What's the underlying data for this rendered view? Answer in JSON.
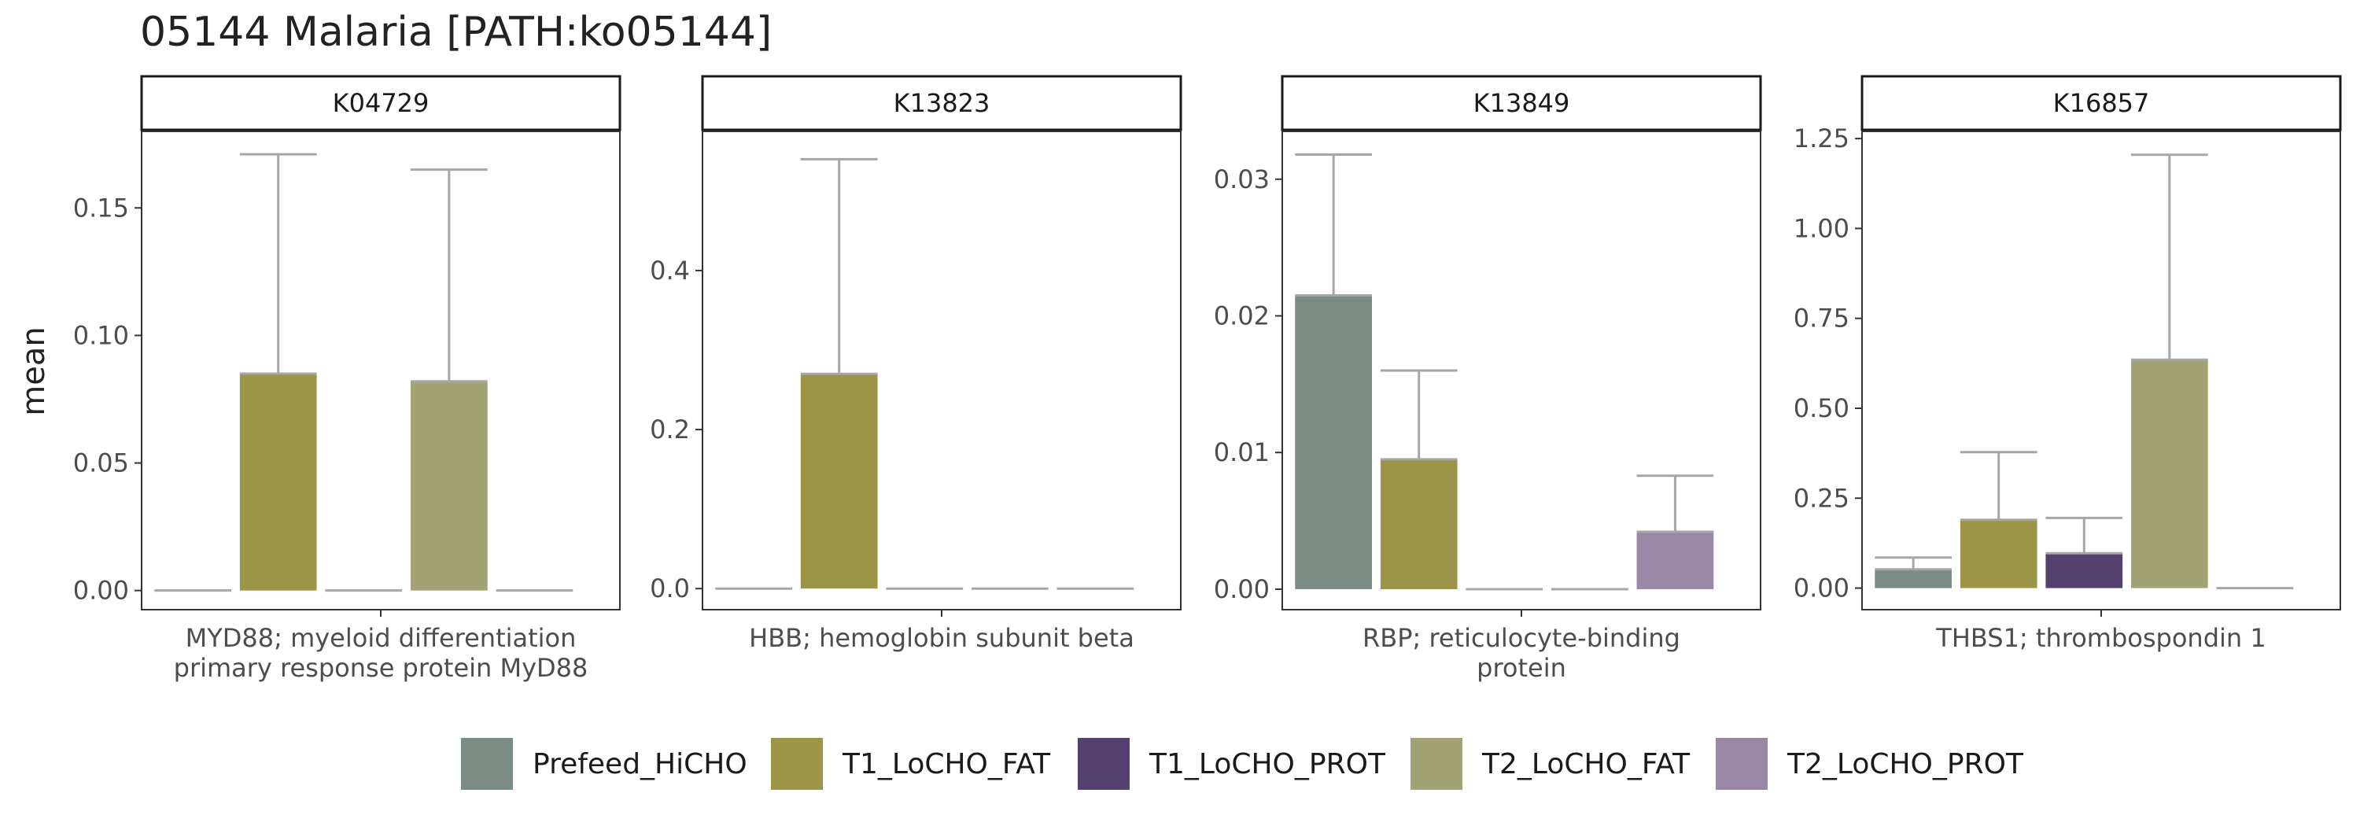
{
  "title": "05144 Malaria [PATH:ko05144]",
  "ylabel": "mean",
  "groups": [
    "Prefeed_HiCHO",
    "T1_LoCHO_FAT",
    "T1_LoCHO_PROT",
    "T2_LoCHO_FAT",
    "T2_LoCHO_PROT"
  ],
  "colors": {
    "Prefeed_HiCHO": "#7a8c84",
    "T1_LoCHO_FAT": "#9c9447",
    "T1_LoCHO_PROT": "#54416f",
    "T2_LoCHO_FAT": "#a2a374",
    "T2_LoCHO_PROT": "#9a87a6",
    "errorbar": "#a6a6a6"
  },
  "chart_data": [
    {
      "type": "bar",
      "panel": "K04729",
      "category_lines": [
        "MYD88; myeloid differentiation",
        "primary response protein MyD88"
      ],
      "categories": [
        "Prefeed_HiCHO",
        "T1_LoCHO_FAT",
        "T1_LoCHO_PROT",
        "T2_LoCHO_FAT",
        "T2_LoCHO_PROT"
      ],
      "values": [
        0,
        0.085,
        0,
        0.082,
        0
      ],
      "error_upper": [
        0,
        0.171,
        0,
        0.165,
        0
      ],
      "ylim": [
        -0.0075,
        0.18
      ],
      "yticks": [
        0,
        0.05,
        0.1,
        0.15
      ],
      "ytick_labels": [
        "0.00",
        "0.05",
        "0.10",
        "0.15"
      ]
    },
    {
      "type": "bar",
      "panel": "K13823",
      "category_lines": [
        "HBB; hemoglobin subunit beta"
      ],
      "categories": [
        "Prefeed_HiCHO",
        "T1_LoCHO_FAT",
        "T1_LoCHO_PROT",
        "T2_LoCHO_FAT",
        "T2_LoCHO_PROT"
      ],
      "values": [
        0,
        0.27,
        0,
        0,
        0
      ],
      "error_upper": [
        0,
        0.54,
        0,
        0,
        0
      ],
      "ylim": [
        -0.0265,
        0.575
      ],
      "yticks": [
        0,
        0.2,
        0.4
      ],
      "ytick_labels": [
        "0.0",
        "0.2",
        "0.4"
      ]
    },
    {
      "type": "bar",
      "panel": "K13849",
      "category_lines": [
        "RBP; reticulocyte-binding",
        "protein"
      ],
      "categories": [
        "Prefeed_HiCHO",
        "T1_LoCHO_FAT",
        "T1_LoCHO_PROT",
        "T2_LoCHO_FAT",
        "T2_LoCHO_PROT"
      ],
      "values": [
        0.0215,
        0.0095,
        0,
        0,
        0.0042
      ],
      "error_upper": [
        0.0318,
        0.016,
        0,
        0,
        0.0083
      ],
      "ylim": [
        -0.0015,
        0.0335
      ],
      "yticks": [
        0,
        0.01,
        0.02,
        0.03
      ],
      "ytick_labels": [
        "0.00",
        "0.01",
        "0.02",
        "0.03"
      ]
    },
    {
      "type": "bar",
      "panel": "K16857",
      "category_lines": [
        "THBS1; thrombospondin 1"
      ],
      "categories": [
        "Prefeed_HiCHO",
        "T1_LoCHO_FAT",
        "T1_LoCHO_PROT",
        "T2_LoCHO_FAT",
        "T2_LoCHO_PROT"
      ],
      "values": [
        0.052,
        0.19,
        0.097,
        0.635,
        0
      ],
      "error_upper": [
        0.085,
        0.378,
        0.195,
        1.205,
        0
      ],
      "ylim": [
        -0.06,
        1.27
      ],
      "yticks": [
        0,
        0.25,
        0.5,
        0.75,
        1.0,
        1.25
      ],
      "ytick_labels": [
        "0.00",
        "0.25",
        "0.50",
        "0.75",
        "1.00",
        "1.25"
      ]
    }
  ]
}
